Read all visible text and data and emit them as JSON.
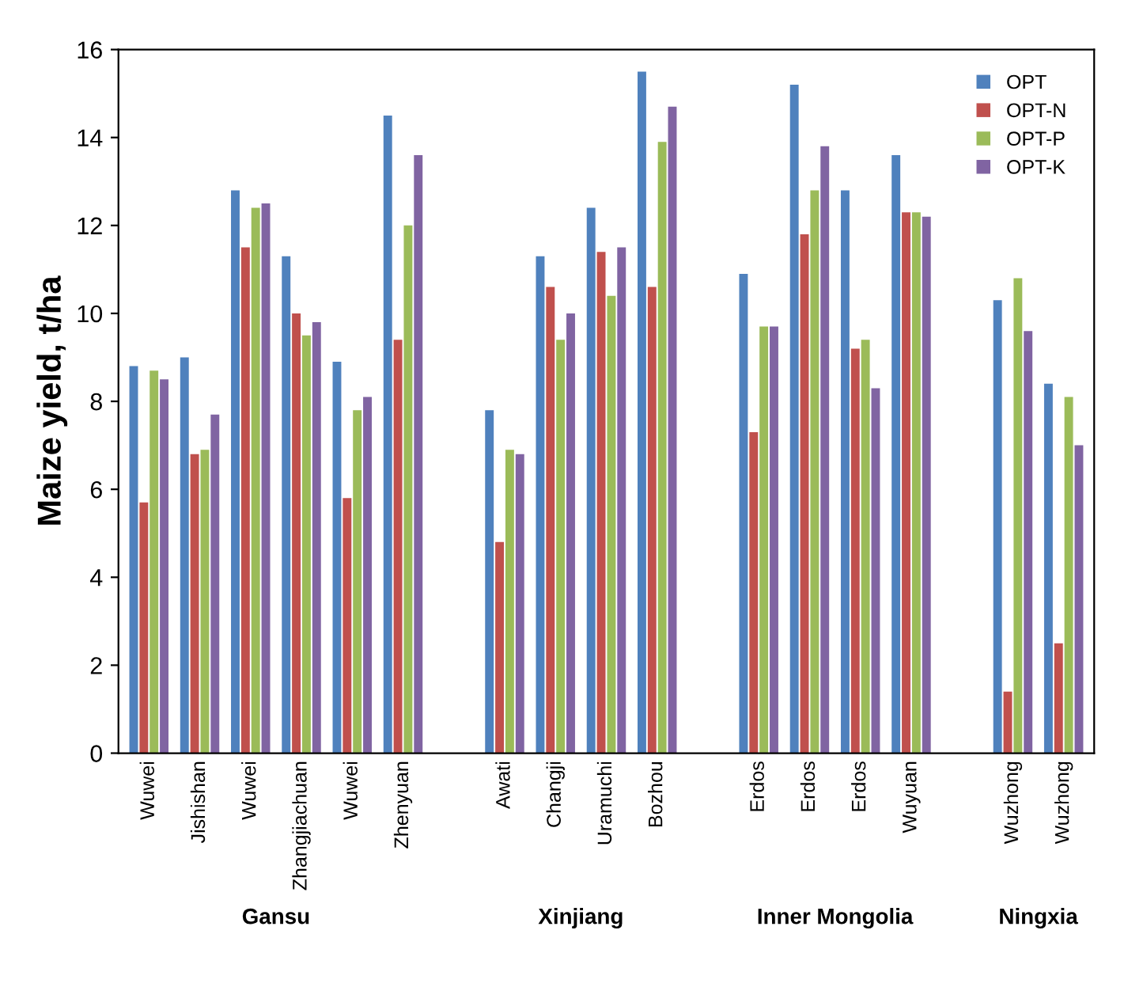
{
  "chart_data": {
    "type": "bar",
    "ylabel": "Maize yield, t/ha",
    "categories": [
      "Wuwei",
      "Jishishan",
      "Wuwei",
      "Zhangjiachuan",
      "Wuwei",
      "Zhenyuan",
      null,
      "Awati",
      "Changji",
      "Uramuchi",
      "Bozhou",
      null,
      "Erdos",
      "Erdos",
      "Erdos",
      "Wuyuan",
      null,
      "Wuzhong",
      "Wuzhong"
    ],
    "series": [
      {
        "name": "OPT",
        "color": "#4f81bd",
        "values": [
          8.8,
          9.0,
          12.8,
          11.3,
          8.9,
          14.5,
          null,
          7.8,
          11.3,
          12.4,
          15.5,
          null,
          10.9,
          15.2,
          12.8,
          13.6,
          null,
          10.3,
          8.4
        ]
      },
      {
        "name": "OPT-N",
        "color": "#c0504d",
        "values": [
          5.7,
          6.8,
          11.5,
          10.0,
          5.8,
          9.4,
          null,
          4.8,
          10.6,
          11.4,
          10.6,
          null,
          7.3,
          11.8,
          9.2,
          12.3,
          null,
          1.4,
          2.5
        ]
      },
      {
        "name": "OPT-P",
        "color": "#9bbb59",
        "values": [
          8.7,
          6.9,
          12.4,
          9.5,
          7.8,
          12.0,
          null,
          6.9,
          9.4,
          10.4,
          13.9,
          null,
          9.7,
          12.8,
          9.4,
          12.3,
          null,
          10.8,
          8.1
        ]
      },
      {
        "name": "OPT-K",
        "color": "#8064a2",
        "values": [
          8.5,
          7.7,
          12.5,
          9.8,
          8.1,
          13.6,
          null,
          6.8,
          10.0,
          11.5,
          14.7,
          null,
          9.7,
          13.8,
          8.3,
          12.2,
          null,
          9.6,
          7.0
        ]
      }
    ],
    "annotations": [
      "Gansu",
      "Xinjiang",
      "Inner Mongolia",
      "Ningxia"
    ],
    "ylim": [
      0,
      16
    ],
    "yticks": [
      0,
      2,
      4,
      6,
      8,
      10,
      12,
      14,
      16
    ],
    "grid": false,
    "legend": "top right"
  }
}
